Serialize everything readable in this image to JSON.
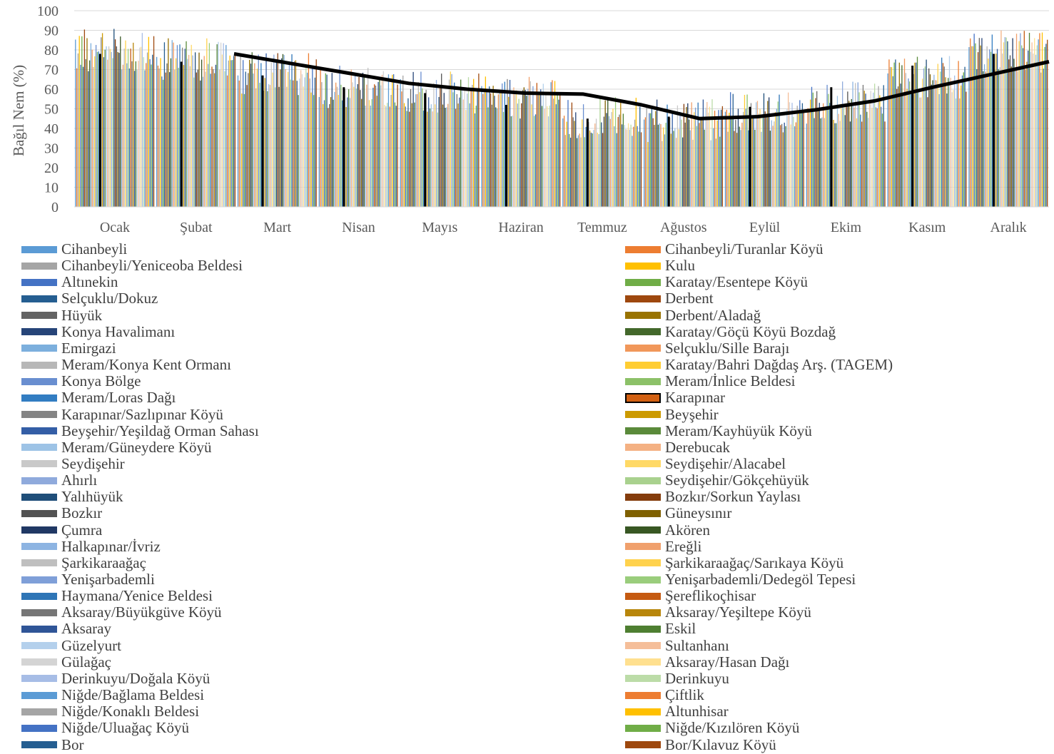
{
  "chart_data": {
    "type": "bar",
    "ylabel": "Bağıl Nem (%)",
    "ylim": [
      0,
      100
    ],
    "yticks": [
      0,
      10,
      20,
      30,
      40,
      50,
      60,
      70,
      80,
      90,
      100
    ],
    "categories": [
      "Ocak",
      "Şubat",
      "Mart",
      "Nisan",
      "Mayıs",
      "Haziran",
      "Temmuz",
      "Ağustos",
      "Eylül",
      "Ekim",
      "Kasım",
      "Aralık"
    ],
    "highlight_series": "Karapınar",
    "highlight_values": [
      78,
      74,
      67,
      61,
      58,
      52,
      45,
      46,
      51,
      61,
      72,
      78
    ],
    "average_line": [
      78,
      73,
      68,
      63,
      60,
      58,
      57.5,
      52,
      45,
      46,
      49.5,
      54,
      61,
      67.5,
      74
    ],
    "month_centers": [
      80,
      75,
      68,
      61,
      58,
      56,
      45,
      44,
      48,
      53,
      66,
      79
    ],
    "series": [
      {
        "name": "Cihanbeyli",
        "color": "#5B9BD5"
      },
      {
        "name": "Cihanbeyli/Turanlar Köyü",
        "color": "#ED7D31"
      },
      {
        "name": "Cihanbeyli/Yeniceoba Beldesi",
        "color": "#A5A5A5"
      },
      {
        "name": "Kulu",
        "color": "#FFC000"
      },
      {
        "name": "Altınekin",
        "color": "#4472C4"
      },
      {
        "name": "Karatay/Esentepe Köyü",
        "color": "#70AD47"
      },
      {
        "name": "Selçuklu/Dokuz",
        "color": "#255E91"
      },
      {
        "name": "Derbent",
        "color": "#9E480E"
      },
      {
        "name": "Hüyük",
        "color": "#636363"
      },
      {
        "name": "Derbent/Aladağ",
        "color": "#997300"
      },
      {
        "name": "Konya Havalimanı",
        "color": "#264478"
      },
      {
        "name": "Karatay/Göçü Köyü Bozdağ",
        "color": "#43682B"
      },
      {
        "name": "Emirgazi",
        "color": "#7CAFDD"
      },
      {
        "name": "Selçuklu/Sille Barajı",
        "color": "#F1975A"
      },
      {
        "name": "Meram/Konya Kent Ormanı",
        "color": "#B7B7B7"
      },
      {
        "name": "Karatay/Bahri Dağdaş Arş. (TAGEM)",
        "color": "#FFCD33"
      },
      {
        "name": "Konya Bölge",
        "color": "#698ED0"
      },
      {
        "name": "Meram/İnlice Beldesi",
        "color": "#8CC168"
      },
      {
        "name": "Meram/Loras Dağı",
        "color": "#327DC2"
      },
      {
        "name": "Karapınar",
        "color": "#D26012"
      },
      {
        "name": "Karapınar/Sazlıpınar Köyü",
        "color": "#848484"
      },
      {
        "name": "Beyşehir",
        "color": "#CC9A00"
      },
      {
        "name": "Beyşehir/Yeşildağ Orman Sahası",
        "color": "#345EA6"
      },
      {
        "name": "Meram/Kayhüyük Köyü",
        "color": "#5A8A3A"
      },
      {
        "name": "Meram/Güneydere Köyü",
        "color": "#9DC3E6"
      },
      {
        "name": "Derebucak",
        "color": "#F4B183"
      },
      {
        "name": "Seydişehir",
        "color": "#C9C9C9"
      },
      {
        "name": "Seydişehir/Alacabel",
        "color": "#FFD966"
      },
      {
        "name": "Ahırlı",
        "color": "#8FAADC"
      },
      {
        "name": "Seydişehir/Gökçehüyük",
        "color": "#A9D18E"
      },
      {
        "name": "Yalıhüyük",
        "color": "#1F4E79"
      },
      {
        "name": "Bozkır/Sorkun Yaylası",
        "color": "#843C0C"
      },
      {
        "name": "Bozkır",
        "color": "#525252"
      },
      {
        "name": "Güneysınır",
        "color": "#7F6000"
      },
      {
        "name": "Çumra",
        "color": "#203864"
      },
      {
        "name": "Akören",
        "color": "#385723"
      },
      {
        "name": "Halkapınar/İvriz",
        "color": "#8DB4E2"
      },
      {
        "name": "Ereğli",
        "color": "#F0A06C"
      },
      {
        "name": "Şarkikaraağaç",
        "color": "#BFBFBF"
      },
      {
        "name": "Şarkikaraağaç/Sarıkaya Köyü",
        "color": "#FFD24D"
      },
      {
        "name": "Yenişarbademli",
        "color": "#7F9FD8"
      },
      {
        "name": "Yenişarbademli/Dedegöl Tepesi",
        "color": "#9ACD7C"
      },
      {
        "name": "Haymana/Yenice Beldesi",
        "color": "#2E75B6"
      },
      {
        "name": "Şereflikoçhisar",
        "color": "#C55A11"
      },
      {
        "name": "Aksaray/Büyükgüve Köyü",
        "color": "#767676"
      },
      {
        "name": "Aksaray/Yeşiltepe Köyü",
        "color": "#B8860B"
      },
      {
        "name": "Aksaray",
        "color": "#2F5597"
      },
      {
        "name": "Eskil",
        "color": "#4E7F31"
      },
      {
        "name": "Güzelyurt",
        "color": "#B4D0EC"
      },
      {
        "name": "Sultanhanı",
        "color": "#F5BE99"
      },
      {
        "name": "Gülağaç",
        "color": "#D4D4D4"
      },
      {
        "name": "Aksaray/Hasan Dağı",
        "color": "#FFE08F"
      },
      {
        "name": "Derinkuyu/Doğala Köyü",
        "color": "#A7BDE6"
      },
      {
        "name": "Derinkuyu",
        "color": "#BCDCA8"
      },
      {
        "name": "Niğde/Bağlama Beldesi",
        "color": "#5B9BD5"
      },
      {
        "name": "Çiftlik",
        "color": "#ED7D31"
      },
      {
        "name": "Niğde/Konaklı Beldesi",
        "color": "#A5A5A5"
      },
      {
        "name": "Altunhisar",
        "color": "#FFC000"
      },
      {
        "name": "Niğde/Uluağaç Köyü",
        "color": "#4472C4"
      },
      {
        "name": "Niğde/Kızılören Köyü",
        "color": "#70AD47"
      },
      {
        "name": "Bor",
        "color": "#255E91"
      },
      {
        "name": "Bor/Kılavuz Köyü",
        "color": "#9E480E"
      }
    ]
  }
}
